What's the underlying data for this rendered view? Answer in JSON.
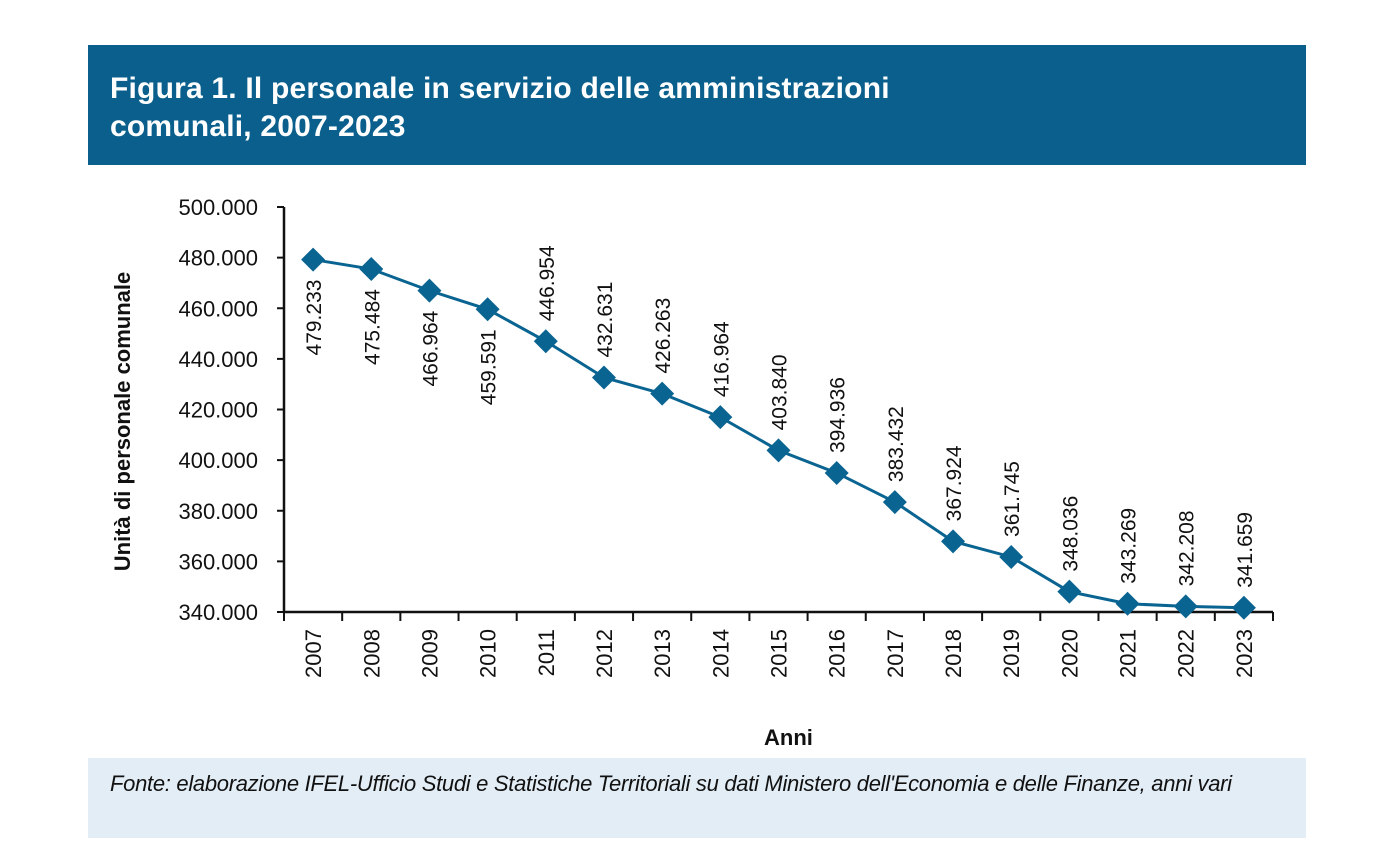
{
  "figure": {
    "title": "Figura 1.  Il personale in servizio delle amministrazioni\ncomunali, 2007-2023",
    "source_note": "Fonte: elaborazione IFEL-Ufficio Studi e Statistiche Territoriali su dati Ministero dell'Economia\ne delle Finanze, anni vari",
    "colors": {
      "header_bg": "#0a5f8c",
      "footer_bg": "#e3edf6",
      "series": "#0a6491"
    }
  },
  "chart_data": {
    "type": "line",
    "title": "Il personale in servizio delle amministrazioni comunali, 2007-2023",
    "xlabel": "Anni",
    "ylabel": "Unità di personale comunale",
    "ylim": [
      340000,
      500000
    ],
    "y_ticks": [
      340000,
      360000,
      380000,
      400000,
      420000,
      440000,
      460000,
      480000,
      500000
    ],
    "y_tick_labels": [
      "340.000",
      "360.000",
      "380.000",
      "400.000",
      "420.000",
      "440.000",
      "460.000",
      "480.000",
      "500.000"
    ],
    "grid": false,
    "legend": "none",
    "categories": [
      "2007",
      "2008",
      "2009",
      "2010",
      "2011",
      "2012",
      "2013",
      "2014",
      "2015",
      "2016",
      "2017",
      "2018",
      "2019",
      "2020",
      "2021",
      "2022",
      "2023"
    ],
    "series": [
      {
        "name": "Personale in servizio",
        "marker": "diamond",
        "values": [
          479233,
          475484,
          466964,
          459591,
          446954,
          432631,
          426263,
          416964,
          403840,
          394936,
          383432,
          367924,
          361745,
          348036,
          343269,
          342208,
          341659
        ],
        "data_labels": [
          "479.233",
          "475.484",
          "466.964",
          "459.591",
          "446.954",
          "432.631",
          "426.263",
          "416.964",
          "403.840",
          "394.936",
          "383.432",
          "367.924",
          "361.745",
          "348.036",
          "343.269",
          "342.208",
          "341.659"
        ],
        "label_position": [
          "below",
          "below",
          "below",
          "below",
          "above",
          "above",
          "above",
          "above",
          "above",
          "above",
          "above",
          "above",
          "above",
          "above",
          "above",
          "above",
          "above"
        ]
      }
    ]
  }
}
